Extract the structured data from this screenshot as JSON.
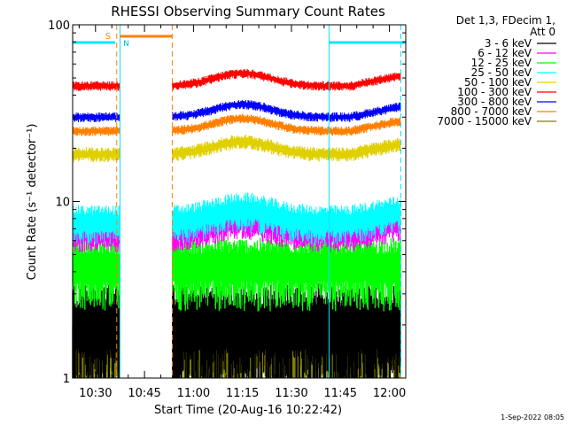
{
  "chart_data": {
    "type": "line",
    "title": "RHESSI Observing Summary Count Rates",
    "xlabel": "Start Time (20-Aug-16 10:22:42)",
    "ylabel": "Count Rate (s⁻¹ detector⁻¹)",
    "y_scale": "log",
    "ylim": [
      1,
      100
    ],
    "y_ticks": [
      1,
      10,
      100
    ],
    "y_tick_labels": [
      "1",
      "10",
      "100"
    ],
    "xlim_minutes": [
      -7,
      95
    ],
    "x_ticks": [
      {
        "label": "10:30",
        "minutes": 0
      },
      {
        "label": "10:45",
        "minutes": 15
      },
      {
        "label": "11:00",
        "minutes": 30
      },
      {
        "label": "11:15",
        "minutes": 45
      },
      {
        "label": "11:30",
        "minutes": 60
      },
      {
        "label": "11:45",
        "minutes": 75
      },
      {
        "label": "12:00",
        "minutes": 90
      }
    ],
    "legend_header": [
      "Det 1,3, FDecim 1,",
      "Att 0"
    ],
    "legend_position": "right",
    "series": [
      {
        "name": "3 - 6 keV",
        "color": "#000000",
        "level": 2.0,
        "spread": 0.45,
        "segment_min_level": 1.4
      },
      {
        "name": "6 - 12 keV",
        "color": "#ff00ff",
        "level": 6.5,
        "spread": 0.13
      },
      {
        "name": "12 - 25 keV",
        "color": "#00ff00",
        "level": 4.3,
        "spread": 0.28
      },
      {
        "name": "25 - 50 keV",
        "color": "#00ffff",
        "level": 7.6,
        "spread": 0.16
      },
      {
        "name": "50 - 100 keV",
        "color": "#e0d000",
        "level": 18.5,
        "spread": 0.06
      },
      {
        "name": "100 - 300 keV",
        "color": "#ff0000",
        "level": 45,
        "spread": 0.04
      },
      {
        "name": "300 - 800 keV",
        "color": "#0000ff",
        "level": 30,
        "spread": 0.04
      },
      {
        "name": "800 - 7000 keV",
        "color": "#ff8000",
        "level": 25,
        "spread": 0.04
      },
      {
        "name": "7000 - 15000 keV",
        "color": "#808000",
        "level": 1.5,
        "spread": 0.35
      }
    ],
    "gap_minutes": [
      7.5,
      23.5
    ],
    "saa_bars": [
      {
        "label": "S",
        "start": -7,
        "end": 6,
        "color": "#00e5ff"
      },
      {
        "label": "",
        "start": 71.5,
        "end": 95,
        "color": "#00e5ff"
      }
    ],
    "night_bars": [
      {
        "label": "N",
        "start": 7.5,
        "end": 23.5,
        "color": "#ff8000"
      }
    ],
    "vertical_markers": [
      {
        "minutes": 6.5,
        "color": "#ff8000",
        "style": "dashed"
      },
      {
        "minutes": 23.5,
        "color": "#ff8000",
        "style": "dashed"
      },
      {
        "minutes": 7.5,
        "color": "#00e5ff",
        "style": "solid"
      },
      {
        "minutes": 71.5,
        "color": "#00e5ff",
        "style": "solid"
      },
      {
        "minutes": 93.5,
        "color": "#00e5ff",
        "style": "dashed"
      }
    ],
    "footer_date": "1-Sep-2022 08:05"
  }
}
